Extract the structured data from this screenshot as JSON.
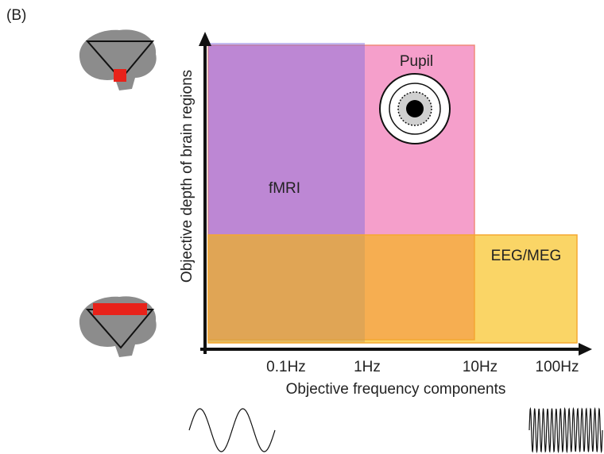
{
  "panel_label": "(B)",
  "x_axis": {
    "label": "Objective frequency components",
    "ticks": [
      "0.1Hz",
      "1Hz",
      "10Hz",
      "100Hz"
    ]
  },
  "y_axis": {
    "label": "Objective depth of brain regions"
  },
  "regions": [
    {
      "label": "fMRI"
    },
    {
      "label": "Pupil"
    },
    {
      "label": "EEG/MEG"
    }
  ]
}
